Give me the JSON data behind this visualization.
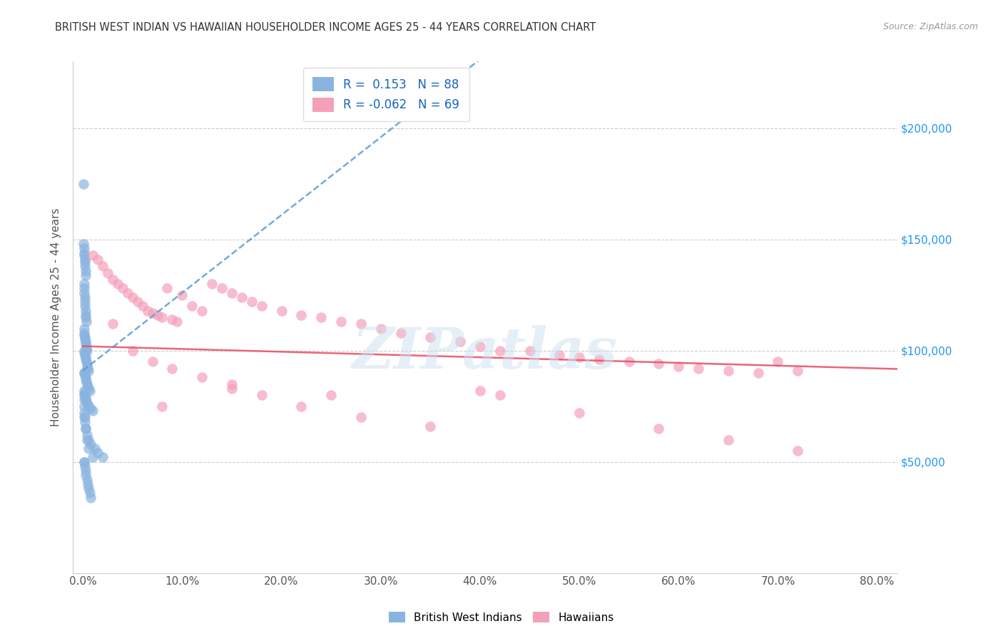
{
  "title": "BRITISH WEST INDIAN VS HAWAIIAN HOUSEHOLDER INCOME AGES 25 - 44 YEARS CORRELATION CHART",
  "source": "Source: ZipAtlas.com",
  "xlabel_ticks": [
    "0.0%",
    "10.0%",
    "20.0%",
    "30.0%",
    "40.0%",
    "50.0%",
    "60.0%",
    "70.0%",
    "80.0%"
  ],
  "xlabel_vals": [
    0,
    10,
    20,
    30,
    40,
    50,
    60,
    70,
    80
  ],
  "ylabel": "Householder Income Ages 25 - 44 years",
  "yticks": [
    0,
    50000,
    100000,
    150000,
    200000
  ],
  "ylim": [
    0,
    230000
  ],
  "xlim": [
    -1,
    82
  ],
  "blue_color": "#8ab4e0",
  "pink_color": "#f4a0b8",
  "blue_line_color": "#5b9bd5",
  "pink_line_color": "#e8546a",
  "r_blue": 0.153,
  "n_blue": 88,
  "r_pink": -0.062,
  "n_pink": 69,
  "legend_label_blue": "British West Indians",
  "legend_label_pink": "Hawaiians",
  "watermark": "ZIPatlas",
  "blue_x": [
    0.05,
    0.08,
    0.1,
    0.12,
    0.15,
    0.18,
    0.2,
    0.22,
    0.25,
    0.28,
    0.1,
    0.12,
    0.15,
    0.18,
    0.2,
    0.22,
    0.25,
    0.28,
    0.3,
    0.32,
    0.1,
    0.12,
    0.15,
    0.18,
    0.22,
    0.25,
    0.28,
    0.35,
    0.38,
    0.4,
    0.1,
    0.15,
    0.2,
    0.25,
    0.3,
    0.35,
    0.4,
    0.45,
    0.5,
    0.55,
    0.1,
    0.15,
    0.2,
    0.25,
    0.3,
    0.35,
    0.4,
    0.5,
    0.6,
    0.7,
    0.1,
    0.15,
    0.2,
    0.25,
    0.3,
    0.35,
    0.5,
    0.6,
    0.8,
    1.0,
    0.1,
    0.15,
    0.2,
    0.3,
    0.4,
    0.6,
    0.8,
    1.2,
    1.5,
    2.0,
    0.1,
    0.15,
    0.2,
    0.25,
    0.3,
    0.4,
    0.5,
    0.6,
    0.7,
    0.8,
    0.1,
    0.12,
    0.15,
    0.2,
    0.25,
    0.4,
    0.6,
    1.0
  ],
  "blue_y": [
    175000,
    148000,
    146000,
    144000,
    143000,
    141000,
    140000,
    138000,
    136000,
    134000,
    130000,
    128000,
    126000,
    124000,
    122000,
    120000,
    118000,
    116000,
    115000,
    113000,
    110000,
    108000,
    107000,
    106000,
    105000,
    104000,
    103000,
    102000,
    101000,
    100000,
    100000,
    99000,
    98000,
    97000,
    96000,
    95000,
    94000,
    93000,
    92000,
    91000,
    90000,
    90000,
    89000,
    88000,
    87000,
    86000,
    85000,
    84000,
    83000,
    82000,
    82000,
    81000,
    80000,
    79000,
    78000,
    77000,
    76000,
    75000,
    74000,
    73000,
    72000,
    70000,
    68000,
    65000,
    62000,
    60000,
    58000,
    56000,
    54000,
    52000,
    50000,
    50000,
    48000,
    46000,
    44000,
    42000,
    40000,
    38000,
    36000,
    34000,
    80000,
    78000,
    75000,
    70000,
    65000,
    60000,
    56000,
    52000
  ],
  "pink_x": [
    1.0,
    1.5,
    2.0,
    2.5,
    3.0,
    3.5,
    4.0,
    4.5,
    5.0,
    5.5,
    6.0,
    6.5,
    7.0,
    7.5,
    8.0,
    8.5,
    9.0,
    9.5,
    10.0,
    11.0,
    12.0,
    13.0,
    14.0,
    15.0,
    16.0,
    17.0,
    18.0,
    20.0,
    22.0,
    24.0,
    26.0,
    28.0,
    30.0,
    32.0,
    35.0,
    38.0,
    40.0,
    42.0,
    45.0,
    48.0,
    50.0,
    52.0,
    55.0,
    58.0,
    60.0,
    62.0,
    65.0,
    68.0,
    70.0,
    72.0,
    3.0,
    5.0,
    7.0,
    9.0,
    12.0,
    15.0,
    18.0,
    22.0,
    28.0,
    35.0,
    42.0,
    50.0,
    58.0,
    65.0,
    72.0,
    8.0,
    15.0,
    25.0,
    40.0
  ],
  "pink_y": [
    143000,
    141000,
    138000,
    135000,
    132000,
    130000,
    128000,
    126000,
    124000,
    122000,
    120000,
    118000,
    117000,
    116000,
    115000,
    128000,
    114000,
    113000,
    125000,
    120000,
    118000,
    130000,
    128000,
    126000,
    124000,
    122000,
    120000,
    118000,
    116000,
    115000,
    113000,
    112000,
    110000,
    108000,
    106000,
    104000,
    102000,
    100000,
    100000,
    98000,
    97000,
    96000,
    95000,
    94000,
    93000,
    92000,
    91000,
    90000,
    95000,
    91000,
    112000,
    100000,
    95000,
    92000,
    88000,
    83000,
    80000,
    75000,
    70000,
    66000,
    80000,
    72000,
    65000,
    60000,
    55000,
    75000,
    85000,
    80000,
    82000
  ]
}
